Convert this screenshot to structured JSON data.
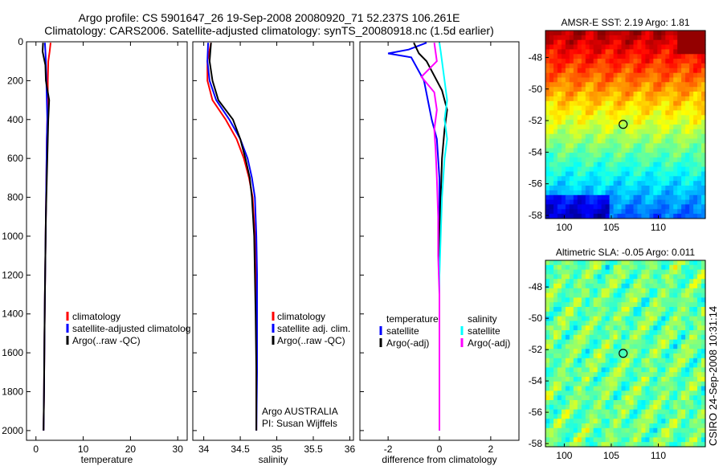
{
  "header": {
    "line1": "Argo profile: CS 5901647_26 19-Sep-2008 20080920_71 52.237S 106.261E",
    "line2": "Climatology: CARS2006. Satellite-adjusted climatology: synTS_20080918.nc (1.5d earlier)"
  },
  "stamp": "CSIRO 24-Sep-2008 10:31:14",
  "colors": {
    "climatology": "#ff0000",
    "satellite": "#0000ff",
    "argo": "#000000",
    "salinity_satellite": "#00ffff",
    "salinity_argo": "#ff00ff"
  },
  "chart_data": [
    {
      "type": "line",
      "xlabel": "temperature",
      "ylabel": "",
      "xlim": [
        -2,
        32
      ],
      "ylim": [
        2050,
        0
      ],
      "xticks": [
        "0",
        "10",
        "20",
        "30"
      ],
      "xtick_values": [
        0,
        10,
        20,
        30
      ],
      "yticks": [
        "0",
        "200",
        "400",
        "600",
        "800",
        "1000",
        "1200",
        "1400",
        "1600",
        "1800",
        "2000"
      ],
      "ytick_values": [
        0,
        200,
        400,
        600,
        800,
        1000,
        1200,
        1400,
        1600,
        1800,
        2000
      ],
      "legend": [
        "climatology",
        "satellite-adjusted climatolog",
        "Argo(..raw -QC)"
      ],
      "series": [
        {
          "name": "climatology",
          "color": "#ff0000",
          "x": [
            3.1,
            2.9,
            2.6,
            2.5,
            2.5,
            2.4,
            2.3,
            2.2,
            2.1,
            2.0,
            1.9,
            1.8,
            1.7,
            1.6
          ],
          "y": [
            5,
            50,
            100,
            200,
            300,
            400,
            500,
            700,
            900,
            1100,
            1300,
            1500,
            1800,
            2000
          ]
        },
        {
          "name": "satellite-adjusted climatolog",
          "color": "#0000ff",
          "x": [
            1.9,
            2.0,
            2.1,
            2.2,
            2.3,
            2.4,
            2.3,
            2.2,
            2.1,
            2.0,
            1.9,
            1.8,
            1.7,
            1.6
          ],
          "y": [
            5,
            50,
            100,
            200,
            300,
            400,
            500,
            700,
            900,
            1100,
            1300,
            1500,
            1800,
            2000
          ]
        },
        {
          "name": "Argo(..raw -QC)",
          "color": "#000000",
          "x": [
            1.5,
            1.4,
            2.0,
            2.1,
            2.8,
            2.6,
            2.5,
            2.3,
            2.1,
            2.0,
            1.9,
            1.8,
            1.7,
            1.6
          ],
          "y": [
            5,
            50,
            120,
            200,
            300,
            400,
            500,
            700,
            900,
            1100,
            1300,
            1500,
            1800,
            2000
          ]
        }
      ],
      "annotations": []
    },
    {
      "type": "line",
      "xlabel": "salinity",
      "ylabel": "",
      "xlim": [
        33.85,
        36.05
      ],
      "ylim": [
        2050,
        0
      ],
      "xticks": [
        "34",
        "34.5",
        "35",
        "35.5",
        "36"
      ],
      "xtick_values": [
        34,
        34.5,
        35,
        35.5,
        36
      ],
      "legend": [
        "climatology",
        "satellite adj. clim.",
        "Argo(..raw -QC)"
      ],
      "series": [
        {
          "name": "climatology",
          "color": "#ff0000",
          "x": [
            34.1,
            34.05,
            34.05,
            34.12,
            34.3,
            34.45,
            34.55,
            34.62,
            34.67,
            34.7,
            34.71,
            34.72,
            34.72,
            34.72
          ],
          "y": [
            5,
            100,
            200,
            300,
            400,
            500,
            600,
            700,
            800,
            1000,
            1200,
            1400,
            1700,
            2000
          ]
        },
        {
          "name": "satellite adj. clim.",
          "color": "#0000ff",
          "x": [
            34.06,
            34.05,
            34.08,
            34.17,
            34.35,
            34.5,
            34.6,
            34.66,
            34.7,
            34.72,
            34.73,
            34.73,
            34.73,
            34.72
          ],
          "y": [
            5,
            100,
            200,
            300,
            400,
            500,
            600,
            700,
            800,
            1000,
            1200,
            1400,
            1700,
            2000
          ]
        },
        {
          "name": "Argo(..raw -QC)",
          "color": "#000000",
          "x": [
            34.1,
            34.08,
            34.12,
            34.2,
            34.4,
            34.5,
            34.57,
            34.63,
            34.66,
            34.69,
            34.7,
            34.71,
            34.72,
            34.72
          ],
          "y": [
            5,
            100,
            200,
            300,
            400,
            500,
            600,
            700,
            800,
            1000,
            1200,
            1400,
            1700,
            2000
          ]
        }
      ],
      "annotations": [
        "Argo AUSTRALIA",
        "PI: Susan Wijffels"
      ]
    },
    {
      "type": "line",
      "xlabel": "difference from climatology",
      "ylabel": "",
      "xlim": [
        -3.1,
        3.1
      ],
      "ylim": [
        2050,
        0
      ],
      "xticks": [
        "-2",
        "0",
        "2"
      ],
      "xtick_values": [
        -2,
        0,
        2
      ],
      "legend": [
        "temperature",
        "satellite",
        "Argo(-adj)",
        "salinity",
        "satellite",
        "Argo(-adj)"
      ],
      "series": [
        {
          "name": "satellite",
          "group": "temperature",
          "color": "#0000ff",
          "x": [
            -0.5,
            -1.2,
            -2.0,
            -1.1,
            -0.6,
            -0.3,
            -0.1,
            0.0,
            0.0,
            0.0,
            0.0,
            0.0,
            0.0,
            0.0
          ],
          "y": [
            5,
            40,
            60,
            80,
            200,
            400,
            500,
            700,
            900,
            1100,
            1300,
            1500,
            1800,
            2000
          ]
        },
        {
          "name": "Argo(-adj)",
          "group": "temperature",
          "color": "#000000",
          "x": [
            -1.0,
            -0.8,
            -0.5,
            -0.3,
            0.1,
            0.3,
            0.2,
            0.1,
            0.05,
            0.0,
            0.0,
            0.0,
            0.0,
            0.0
          ],
          "y": [
            5,
            60,
            100,
            150,
            250,
            350,
            450,
            600,
            800,
            1000,
            1200,
            1500,
            1800,
            2000
          ]
        },
        {
          "name": "satellite",
          "group": "salinity",
          "color": "#00ffff",
          "x": [
            0.0,
            0.05,
            0.1,
            0.2,
            0.3,
            0.2,
            0.3,
            0.2,
            0.1,
            0.05,
            0.0,
            0.0,
            0.0,
            0.0
          ],
          "y": [
            5,
            50,
            100,
            200,
            300,
            400,
            500,
            600,
            800,
            1000,
            1200,
            1500,
            1800,
            2000
          ]
        },
        {
          "name": "Argo(-adj)",
          "group": "salinity",
          "color": "#ff00ff",
          "x": [
            -0.2,
            -0.1,
            -0.7,
            -0.2,
            -0.1,
            -0.2,
            -0.15,
            -0.1,
            -0.05,
            -0.05,
            0.0,
            0.0,
            0.0,
            0.0
          ],
          "y": [
            5,
            100,
            180,
            260,
            350,
            450,
            550,
            700,
            900,
            1100,
            1300,
            1500,
            1800,
            2000
          ]
        }
      ],
      "annotations": []
    },
    {
      "type": "heatmap",
      "title": "AMSR-E SST: 2.19 Argo: 1.81",
      "xlim": [
        98,
        115
      ],
      "ylim": [
        -58.2,
        -46.3
      ],
      "xticks": [
        "100",
        "105",
        "110"
      ],
      "xtick_values": [
        100,
        105,
        110
      ],
      "yticks": [
        "-48",
        "-50",
        "-52",
        "-54",
        "-56",
        "-58"
      ],
      "ytick_values": [
        -48,
        -50,
        -52,
        -54,
        -56,
        -58
      ],
      "marker": {
        "lon": 106.261,
        "lat": -52.237
      },
      "colormap": "jet"
    },
    {
      "type": "heatmap",
      "title": "Altimetric SLA: -0.05 Argo: 0.011",
      "xlim": [
        98,
        115
      ],
      "ylim": [
        -58.2,
        -46.3
      ],
      "xticks": [
        "100",
        "105",
        "110"
      ],
      "xtick_values": [
        100,
        105,
        110
      ],
      "yticks": [
        "-48",
        "-50",
        "-52",
        "-54",
        "-56",
        "-58"
      ],
      "ytick_values": [
        -48,
        -50,
        -52,
        -54,
        -56,
        -58
      ],
      "marker": {
        "lon": 106.261,
        "lat": -52.237
      },
      "colormap": "jet"
    }
  ]
}
